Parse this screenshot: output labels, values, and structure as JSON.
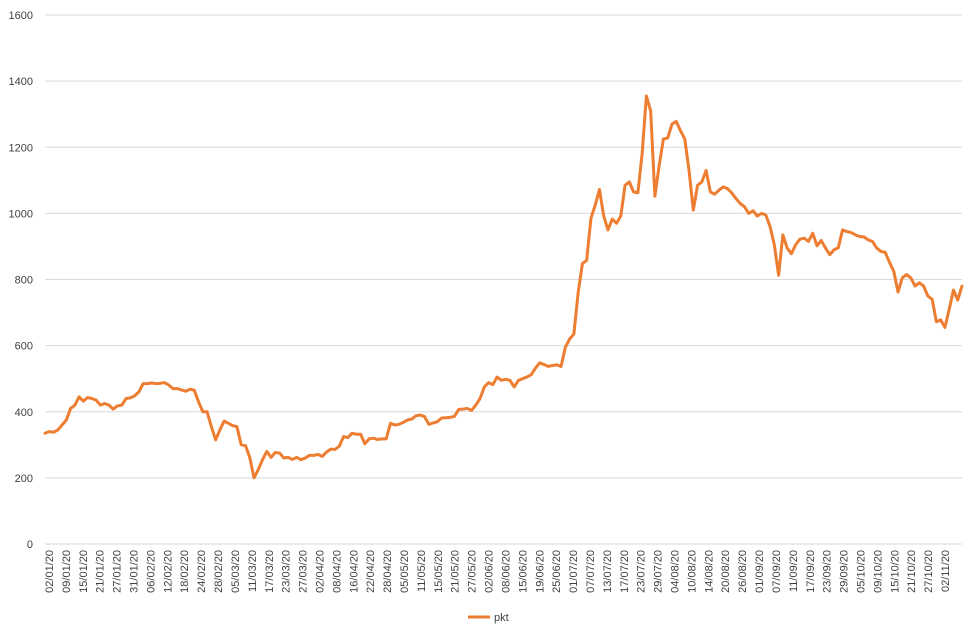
{
  "chart_data": {
    "type": "line",
    "title": "",
    "xlabel": "",
    "ylabel": "",
    "ylim": [
      0,
      1600
    ],
    "yticks": [
      0,
      200,
      400,
      600,
      800,
      1000,
      1200,
      1400,
      1600
    ],
    "grid": "horizontal",
    "legend_position": "bottom",
    "series_color": "#ED7D31",
    "grid_color": "#D9D9D9",
    "x_tick_labels": [
      "02/01/20",
      "09/01/20",
      "15/01/20",
      "21/01/20",
      "27/01/20",
      "31/01/20",
      "06/02/20",
      "12/02/20",
      "18/02/20",
      "24/02/20",
      "28/02/20",
      "05/03/20",
      "11/03/20",
      "17/03/20",
      "23/03/20",
      "27/03/20",
      "02/04/20",
      "08/04/20",
      "16/04/20",
      "22/04/20",
      "28/04/20",
      "05/05/20",
      "11/05/20",
      "15/05/20",
      "21/05/20",
      "27/05/20",
      "02/06/20",
      "08/06/20",
      "15/06/20",
      "19/06/20",
      "25/06/20",
      "01/07/20",
      "07/07/20",
      "13/07/20",
      "17/07/20",
      "23/07/20",
      "29/07/20",
      "04/08/20",
      "10/08/20",
      "14/08/20",
      "20/08/20",
      "26/08/20",
      "01/09/20",
      "07/09/20",
      "11/09/20",
      "17/09/20",
      "23/09/20",
      "29/09/20",
      "05/10/20",
      "09/10/20",
      "15/10/20",
      "21/10/20",
      "27/10/20",
      "02/11/20"
    ],
    "series": [
      {
        "name": "pkt",
        "values": [
          335,
          340,
          338,
          345,
          360,
          375,
          410,
          420,
          445,
          432,
          443,
          440,
          435,
          420,
          425,
          420,
          408,
          418,
          420,
          440,
          442,
          448,
          460,
          485,
          485,
          487,
          485,
          486,
          488,
          481,
          470,
          470,
          466,
          462,
          468,
          465,
          430,
          400,
          400,
          355,
          315,
          345,
          372,
          365,
          358,
          355,
          300,
          298,
          262,
          200,
          225,
          255,
          280,
          262,
          277,
          275,
          260,
          262,
          256,
          262,
          255,
          260,
          268,
          268,
          271,
          265,
          278,
          287,
          286,
          296,
          325,
          322,
          335,
          332,
          332,
          303,
          318,
          320,
          316,
          318,
          318,
          365,
          360,
          362,
          368,
          375,
          378,
          388,
          390,
          385,
          362,
          366,
          370,
          381,
          382,
          383,
          386,
          407,
          408,
          410,
          404,
          420,
          440,
          475,
          488,
          482,
          505,
          495,
          498,
          495,
          475,
          495,
          500,
          505,
          512,
          532,
          548,
          543,
          537,
          540,
          542,
          537,
          595,
          620,
          635,
          760,
          848,
          858,
          985,
          1025,
          1072,
          992,
          950,
          983,
          970,
          992,
          1085,
          1095,
          1065,
          1062,
          1180,
          1355,
          1310,
          1052,
          1145,
          1225,
          1228,
          1270,
          1278,
          1250,
          1225,
          1130,
          1010,
          1085,
          1095,
          1130,
          1065,
          1058,
          1070,
          1080,
          1075,
          1062,
          1045,
          1030,
          1020,
          1000,
          1008,
          992,
          1000,
          995,
          960,
          905,
          813,
          935,
          895,
          878,
          905,
          922,
          925,
          915,
          940,
          902,
          918,
          895,
          875,
          890,
          896,
          950,
          945,
          942,
          935,
          930,
          929,
          920,
          915,
          895,
          885,
          882,
          852,
          825,
          762,
          805,
          815,
          805,
          780,
          790,
          780,
          750,
          740,
          672,
          678,
          655,
          710,
          768,
          738,
          780
        ]
      }
    ]
  }
}
